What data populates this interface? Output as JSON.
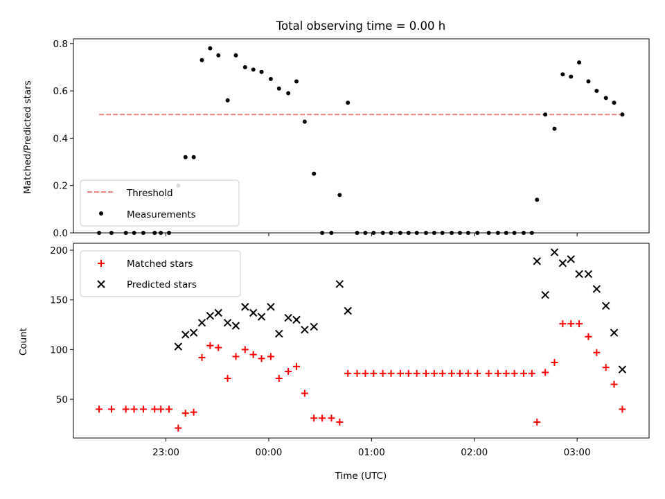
{
  "chart_data": [
    {
      "type": "scatter",
      "title": "Total observing time = 0.00 h",
      "ylabel": "Matched/Predicted stars",
      "xlabel": "",
      "ylim": [
        0,
        0.82
      ],
      "yticks": [
        0.0,
        0.2,
        0.4,
        0.6,
        0.8
      ],
      "ytick_labels": [
        "0.0",
        "0.2",
        "0.4",
        "0.6",
        "0.8"
      ],
      "x_unit": "hours since 00:00 UTC",
      "legend_placement": "lower-left",
      "series": [
        {
          "name": "Threshold",
          "style": "dashed-line",
          "color": "#f08080",
          "points": [
            [
              -1.65,
              0.5
            ],
            [
              3.45,
              0.5
            ]
          ]
        },
        {
          "name": "Measurements",
          "style": "dot",
          "color": "#000000",
          "points": [
            [
              -1.65,
              0.0
            ],
            [
              -1.53,
              0.0
            ],
            [
              -1.39,
              0.0
            ],
            [
              -1.31,
              0.0
            ],
            [
              -1.22,
              0.0
            ],
            [
              -1.11,
              0.0
            ],
            [
              -1.05,
              0.0
            ],
            [
              -0.97,
              0.0
            ],
            [
              -0.88,
              0.2
            ],
            [
              -0.81,
              0.32
            ],
            [
              -0.73,
              0.32
            ],
            [
              -0.65,
              0.73
            ],
            [
              -0.57,
              0.78
            ],
            [
              -0.49,
              0.75
            ],
            [
              -0.4,
              0.56
            ],
            [
              -0.32,
              0.75
            ],
            [
              -0.23,
              0.7
            ],
            [
              -0.15,
              0.69
            ],
            [
              -0.07,
              0.68
            ],
            [
              0.02,
              0.65
            ],
            [
              0.1,
              0.61
            ],
            [
              0.19,
              0.59
            ],
            [
              0.27,
              0.64
            ],
            [
              0.35,
              0.47
            ],
            [
              0.44,
              0.25
            ],
            [
              0.52,
              0.0
            ],
            [
              0.61,
              0.0
            ],
            [
              0.69,
              0.16
            ],
            [
              0.77,
              0.55
            ],
            [
              0.86,
              0.0
            ],
            [
              0.94,
              0.0
            ],
            [
              1.02,
              0.0
            ],
            [
              1.11,
              0.0
            ],
            [
              1.19,
              0.0
            ],
            [
              1.28,
              0.0
            ],
            [
              1.36,
              0.0
            ],
            [
              1.44,
              0.0
            ],
            [
              1.53,
              0.0
            ],
            [
              1.61,
              0.0
            ],
            [
              1.69,
              0.0
            ],
            [
              1.78,
              0.0
            ],
            [
              1.86,
              0.0
            ],
            [
              1.94,
              0.0
            ],
            [
              2.03,
              0.0
            ],
            [
              2.14,
              0.0
            ],
            [
              2.23,
              0.0
            ],
            [
              2.31,
              0.0
            ],
            [
              2.39,
              0.0
            ],
            [
              2.48,
              0.0
            ],
            [
              2.56,
              0.0
            ],
            [
              2.61,
              0.14
            ],
            [
              2.69,
              0.5
            ],
            [
              2.78,
              0.44
            ],
            [
              2.86,
              0.67
            ],
            [
              2.94,
              0.66
            ],
            [
              3.02,
              0.72
            ],
            [
              3.11,
              0.64
            ],
            [
              3.19,
              0.6
            ],
            [
              3.28,
              0.57
            ],
            [
              3.36,
              0.55
            ],
            [
              3.44,
              0.5
            ]
          ]
        }
      ]
    },
    {
      "type": "scatter",
      "title": "",
      "ylabel": "Count",
      "xlabel": "Time (UTC)",
      "ylim": [
        11,
        207
      ],
      "yticks": [
        50,
        100,
        150,
        200
      ],
      "ytick_labels": [
        "50",
        "100",
        "150",
        "200"
      ],
      "xlim": [
        -1.9,
        3.7
      ],
      "xticks": [
        -1.0,
        0.0,
        1.0,
        2.0,
        3.0
      ],
      "xtick_labels": [
        "23:00",
        "00:00",
        "01:00",
        "02:00",
        "03:00"
      ],
      "x_unit": "hours since 00:00 UTC",
      "legend_placement": "upper-left",
      "series": [
        {
          "name": "Matched stars",
          "marker": "plus",
          "color": "#ff0000",
          "points": [
            [
              -1.65,
              40
            ],
            [
              -1.53,
              40
            ],
            [
              -1.39,
              40
            ],
            [
              -1.31,
              40
            ],
            [
              -1.22,
              40
            ],
            [
              -1.11,
              40
            ],
            [
              -1.05,
              40
            ],
            [
              -0.97,
              40
            ],
            [
              -0.88,
              21
            ],
            [
              -0.81,
              36
            ],
            [
              -0.73,
              37
            ],
            [
              -0.65,
              92
            ],
            [
              -0.57,
              104
            ],
            [
              -0.49,
              102
            ],
            [
              -0.4,
              71
            ],
            [
              -0.32,
              93
            ],
            [
              -0.23,
              100
            ],
            [
              -0.15,
              95
            ],
            [
              -0.07,
              91
            ],
            [
              0.02,
              93
            ],
            [
              0.1,
              71
            ],
            [
              0.19,
              78
            ],
            [
              0.27,
              83
            ],
            [
              0.35,
              56
            ],
            [
              0.44,
              31
            ],
            [
              0.52,
              31
            ],
            [
              0.61,
              31
            ],
            [
              0.69,
              27
            ],
            [
              0.77,
              76
            ],
            [
              0.86,
              76
            ],
            [
              0.94,
              76
            ],
            [
              1.02,
              76
            ],
            [
              1.11,
              76
            ],
            [
              1.19,
              76
            ],
            [
              1.28,
              76
            ],
            [
              1.36,
              76
            ],
            [
              1.44,
              76
            ],
            [
              1.53,
              76
            ],
            [
              1.61,
              76
            ],
            [
              1.69,
              76
            ],
            [
              1.78,
              76
            ],
            [
              1.86,
              76
            ],
            [
              1.94,
              76
            ],
            [
              2.03,
              76
            ],
            [
              2.14,
              76
            ],
            [
              2.23,
              76
            ],
            [
              2.31,
              76
            ],
            [
              2.39,
              76
            ],
            [
              2.48,
              76
            ],
            [
              2.56,
              76
            ],
            [
              2.61,
              27
            ],
            [
              2.69,
              77
            ],
            [
              2.78,
              87
            ],
            [
              2.86,
              126
            ],
            [
              2.94,
              126
            ],
            [
              3.02,
              126
            ],
            [
              3.11,
              113
            ],
            [
              3.19,
              97
            ],
            [
              3.28,
              82
            ],
            [
              3.36,
              65
            ],
            [
              3.44,
              40
            ]
          ]
        },
        {
          "name": "Predicted stars",
          "marker": "x",
          "color": "#000000",
          "points": [
            [
              -0.88,
              103
            ],
            [
              -0.81,
              115
            ],
            [
              -0.73,
              117
            ],
            [
              -0.65,
              127
            ],
            [
              -0.57,
              134
            ],
            [
              -0.49,
              137
            ],
            [
              -0.4,
              127
            ],
            [
              -0.32,
              124
            ],
            [
              -0.23,
              143
            ],
            [
              -0.15,
              137
            ],
            [
              -0.07,
              133
            ],
            [
              0.02,
              143
            ],
            [
              0.1,
              116
            ],
            [
              0.19,
              132
            ],
            [
              0.27,
              130
            ],
            [
              0.35,
              120
            ],
            [
              0.44,
              123
            ],
            [
              0.69,
              166
            ],
            [
              0.77,
              139
            ],
            [
              2.61,
              189
            ],
            [
              2.69,
              155
            ],
            [
              2.78,
              198
            ],
            [
              2.86,
              187
            ],
            [
              2.94,
              191
            ],
            [
              3.02,
              176
            ],
            [
              3.11,
              176
            ],
            [
              3.19,
              161
            ],
            [
              3.28,
              144
            ],
            [
              3.36,
              117
            ],
            [
              3.44,
              80
            ]
          ]
        }
      ]
    }
  ]
}
